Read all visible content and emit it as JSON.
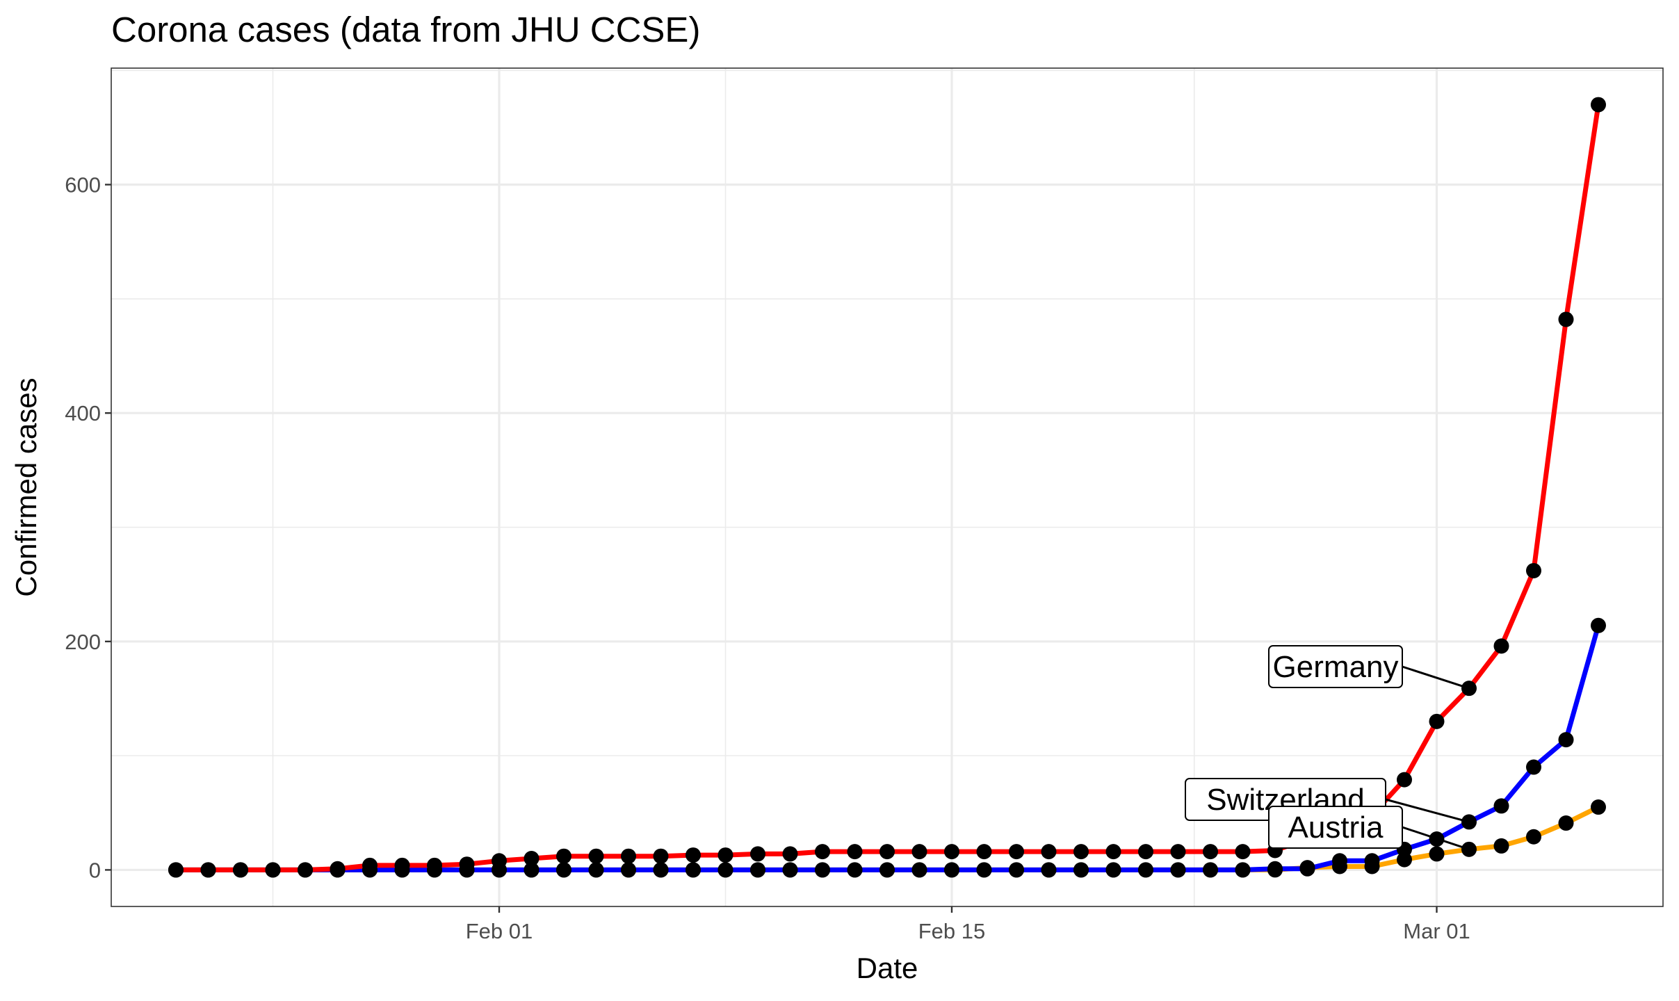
{
  "chart_data": {
    "type": "line",
    "title": "Corona cases (data from JHU CCSE)",
    "xlabel": "Date",
    "ylabel": "Confirmed cases",
    "x_start_date": "2020-01-22",
    "x_ticks": [
      {
        "date": "2020-02-01",
        "label": "Feb 01"
      },
      {
        "date": "2020-02-15",
        "label": "Feb 15"
      },
      {
        "date": "2020-03-01",
        "label": "Mar 01"
      }
    ],
    "xlim": [
      "2020-01-20",
      "2020-03-08"
    ],
    "y_ticks": [
      0,
      200,
      400,
      600
    ],
    "ylim": [
      -32,
      702
    ],
    "grid": true,
    "legend": "none",
    "series": [
      {
        "name": "Germany",
        "color": "#ff0000",
        "values": [
          0,
          0,
          0,
          0,
          0,
          1,
          4,
          4,
          4,
          5,
          8,
          10,
          12,
          12,
          12,
          12,
          13,
          13,
          14,
          14,
          16,
          16,
          16,
          16,
          16,
          16,
          16,
          16,
          16,
          16,
          16,
          16,
          16,
          16,
          17,
          27,
          46,
          48,
          79,
          130,
          159,
          196,
          262,
          482,
          670
        ]
      },
      {
        "name": "Switzerland",
        "color": "#0000ff",
        "values": [
          0,
          0,
          0,
          0,
          0,
          0,
          0,
          0,
          0,
          0,
          0,
          0,
          0,
          0,
          0,
          0,
          0,
          0,
          0,
          0,
          0,
          0,
          0,
          0,
          0,
          0,
          0,
          0,
          0,
          0,
          0,
          0,
          0,
          0,
          1,
          1,
          8,
          8,
          18,
          27,
          42,
          56,
          90,
          114,
          214
        ]
      },
      {
        "name": "Austria",
        "color": "#ffa500",
        "values": [
          0,
          0,
          0,
          0,
          0,
          0,
          0,
          0,
          0,
          0,
          0,
          0,
          0,
          0,
          0,
          0,
          0,
          0,
          0,
          0,
          0,
          0,
          0,
          0,
          0,
          0,
          0,
          0,
          0,
          0,
          0,
          0,
          0,
          0,
          0,
          2,
          3,
          3,
          9,
          14,
          18,
          21,
          29,
          41,
          55
        ]
      }
    ],
    "annotations": [
      {
        "text": "Germany",
        "target_series": "Germany",
        "target_date": "2020-03-02"
      },
      {
        "text": "Switzerland",
        "target_series": "Switzerland",
        "target_date": "2020-03-02"
      },
      {
        "text": "Austria",
        "target_series": "Austria",
        "target_date": "2020-03-02"
      }
    ]
  }
}
